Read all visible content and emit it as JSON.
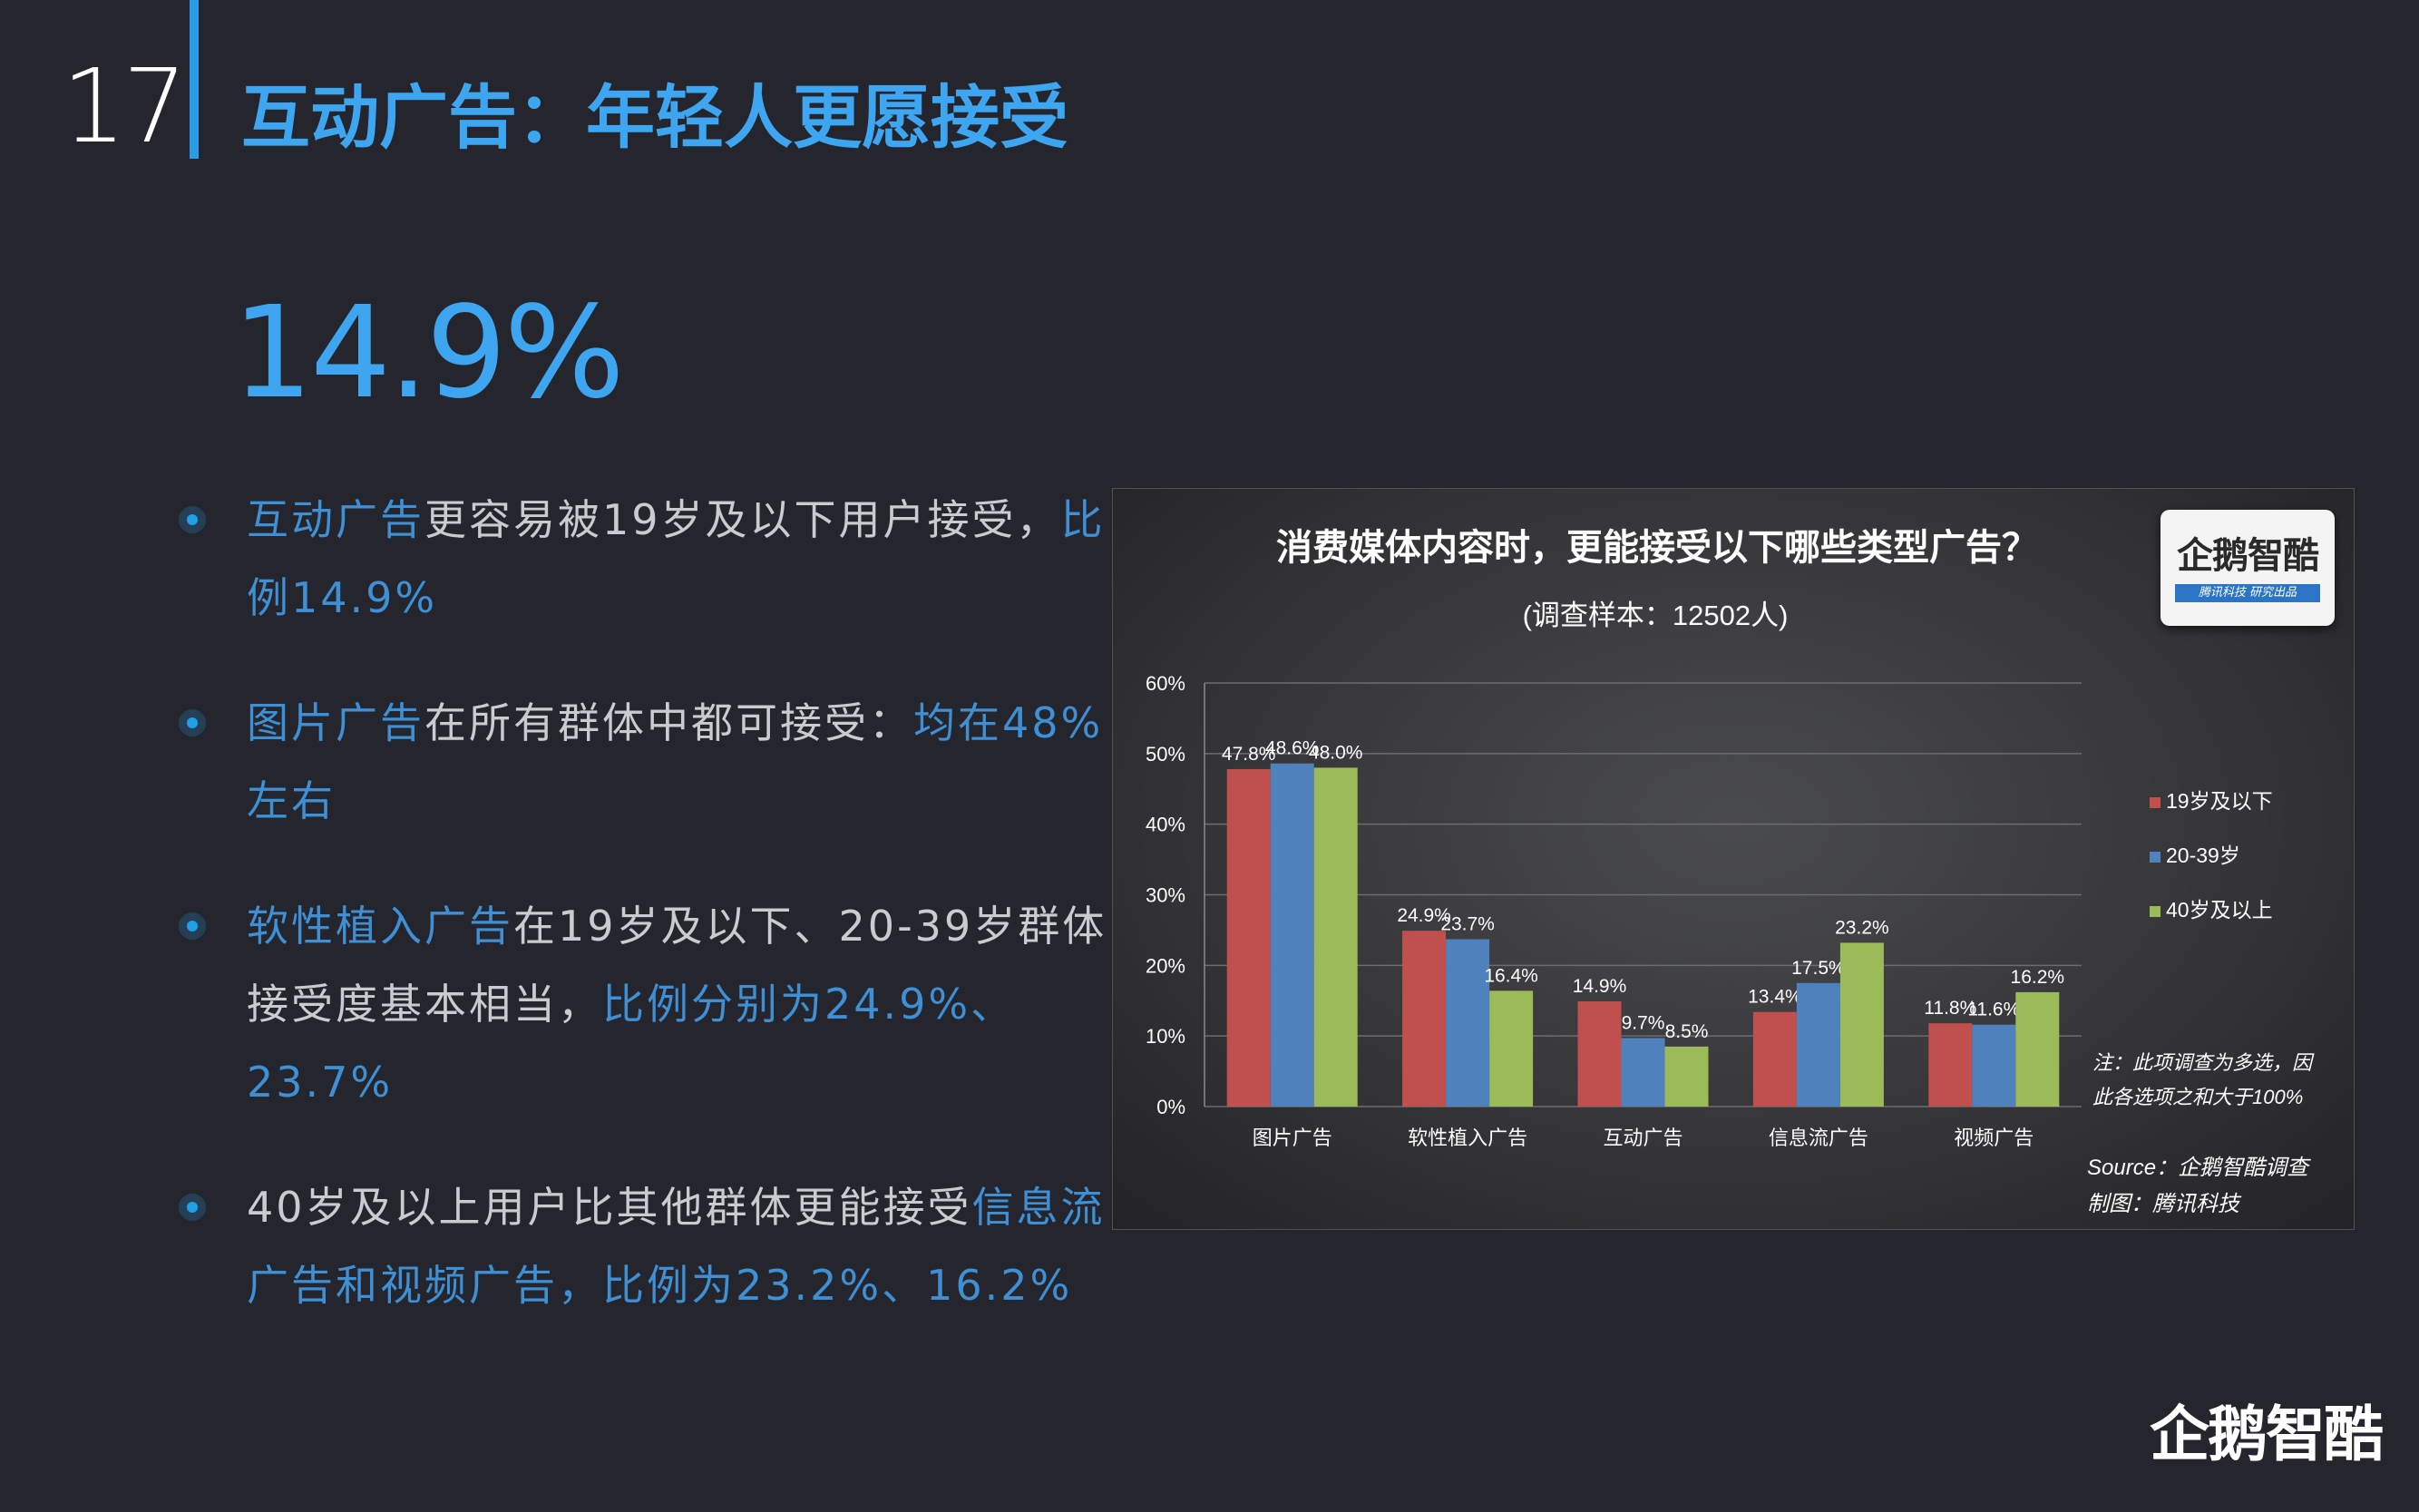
{
  "page": {
    "number": "17",
    "title": "互动广告：年轻人更愿接受",
    "big_stat": "14.9%"
  },
  "bullets": [
    {
      "parts": [
        {
          "text": "互动广告",
          "hl": true
        },
        {
          "text": "更容易被19岁及以下用户接受，",
          "hl": false
        },
        {
          "text": "比例14.9%",
          "hl": true
        }
      ]
    },
    {
      "parts": [
        {
          "text": "图片广告",
          "hl": true
        },
        {
          "text": "在所有群体中都可接受：",
          "hl": false
        },
        {
          "text": "均在48%左右",
          "hl": true
        }
      ]
    },
    {
      "parts": [
        {
          "text": "软性植入广告",
          "hl": true
        },
        {
          "text": "在19岁及以下、20-39岁群体接受度基本相当，",
          "hl": false
        },
        {
          "text": "比例分别为24.9%、23.7%",
          "hl": true
        }
      ]
    },
    {
      "parts": [
        {
          "text": "40岁及以上用户比其他群体更能接受",
          "hl": false
        },
        {
          "text": "信息流广告和视频广告，比例为23.2%、16.2%",
          "hl": true
        }
      ]
    }
  ],
  "chart_data": {
    "type": "bar",
    "title": "消费媒体内容时，更能接受以下哪些类型广告？",
    "subtitle": "(调查样本：12502人)",
    "categories": [
      "图片广告",
      "软性植入广告",
      "互动广告",
      "信息流广告",
      "视频广告"
    ],
    "series": [
      {
        "name": "19岁及以下",
        "color": "#c0504d",
        "values": [
          47.8,
          24.9,
          14.9,
          13.4,
          11.8
        ]
      },
      {
        "name": "20-39岁",
        "color": "#4f81bd",
        "values": [
          48.6,
          23.7,
          9.7,
          17.5,
          11.6
        ]
      },
      {
        "name": "40岁及以上",
        "color": "#9bbb59",
        "values": [
          48.0,
          16.4,
          8.5,
          23.2,
          16.2
        ]
      }
    ],
    "ylim": [
      0,
      60
    ],
    "yticks": [
      "0%",
      "10%",
      "20%",
      "30%",
      "40%",
      "50%",
      "60%"
    ],
    "grid": true,
    "legend_position": "right",
    "note_lines": [
      "注：此项调查为多选，因",
      "此各选项之和大于100%"
    ],
    "source_lines": [
      "Source：企鹅智酷调查",
      "制图：腾讯科技"
    ]
  },
  "logos": {
    "chart_logo_text": "企鹅智酷",
    "chart_logo_sub": "腾讯科技 研究出品",
    "footer_logo_text": "企鹅智酷"
  }
}
